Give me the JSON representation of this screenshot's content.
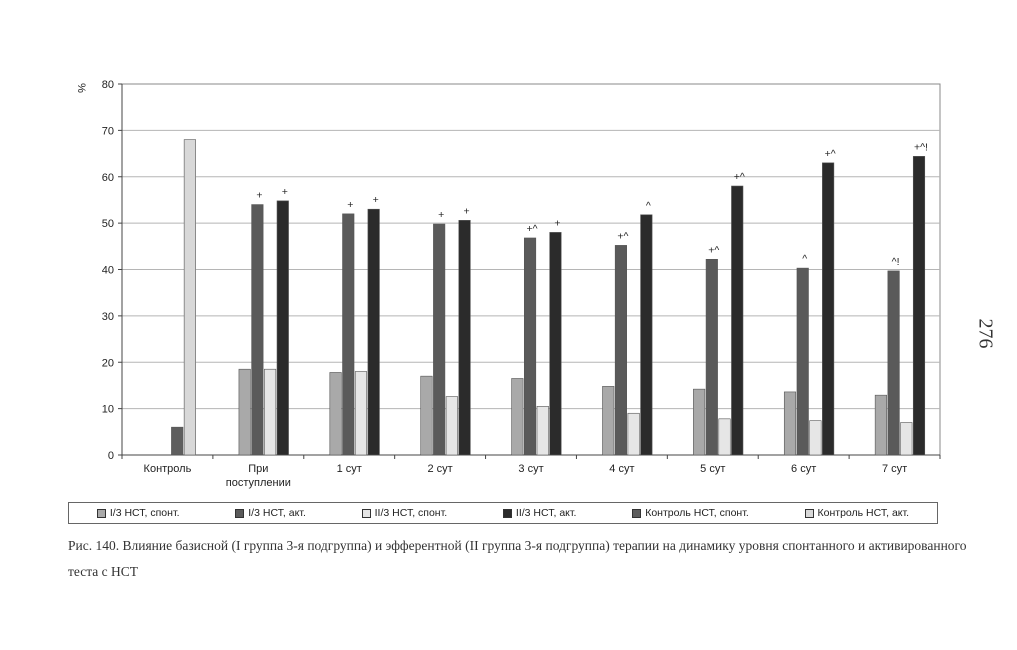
{
  "page_number": "276",
  "caption": "Рис. 140. Влияние базисной (I группа 3-я подгруппа) и эфферентной (II группа 3-я подгруппа) терапии на динамику уровня спонтанного и активированного теста с НСТ",
  "colors": {
    "s1": "#a9a9a9",
    "s2": "#5a5a5a",
    "s3": "#e6e6e6",
    "s4": "#2b2b2b",
    "s5": "#5e5e5e",
    "s6": "#d8d8d8"
  },
  "chart_data": {
    "type": "bar",
    "title": "",
    "xlabel": "",
    "ylabel": "%",
    "ylim": [
      0,
      80
    ],
    "yticks": [
      0,
      10,
      20,
      30,
      40,
      50,
      60,
      70,
      80
    ],
    "grid": true,
    "legend_position": "bottom",
    "categories": [
      "Контроль",
      "При поступлении",
      "1 сут",
      "2 сут",
      "3 сут",
      "4 сут",
      "5 сут",
      "6 сут",
      "7 сут"
    ],
    "series": [
      {
        "name": "I/3 НСТ, спонт.",
        "values": [
          null,
          18.5,
          17.8,
          17.0,
          16.5,
          14.8,
          14.2,
          13.6,
          12.9
        ]
      },
      {
        "name": "I/3 НСТ, акт.",
        "values": [
          null,
          54.0,
          52.0,
          49.8,
          46.8,
          45.2,
          42.2,
          40.3,
          39.7
        ]
      },
      {
        "name": "II/3 НСТ, спонт.",
        "values": [
          null,
          18.5,
          18.0,
          12.6,
          10.5,
          9.0,
          7.8,
          7.4,
          7.0
        ]
      },
      {
        "name": "II/3 НСТ, акт.",
        "values": [
          null,
          54.8,
          53.0,
          50.6,
          48.0,
          51.8,
          58.0,
          63.0,
          64.4
        ]
      },
      {
        "name": "Контроль НСТ, спонт.",
        "values": [
          6.0,
          null,
          null,
          null,
          null,
          null,
          null,
          null,
          null
        ]
      },
      {
        "name": "Контроль НСТ, акт.",
        "values": [
          68.0,
          null,
          null,
          null,
          null,
          null,
          null,
          null,
          null
        ]
      }
    ],
    "annotations": [
      {
        "category": "При поступлении",
        "series": "I/3 НСТ, акт.",
        "text": "+"
      },
      {
        "category": "При поступлении",
        "series": "II/3 НСТ, акт.",
        "text": "+"
      },
      {
        "category": "1 сут",
        "series": "I/3 НСТ, акт.",
        "text": "+"
      },
      {
        "category": "1 сут",
        "series": "II/3 НСТ, акт.",
        "text": "+"
      },
      {
        "category": "2 сут",
        "series": "I/3 НСТ, акт.",
        "text": "+"
      },
      {
        "category": "2 сут",
        "series": "II/3 НСТ, акт.",
        "text": "+"
      },
      {
        "category": "3 сут",
        "series": "I/3 НСТ, акт.",
        "text": "+^"
      },
      {
        "category": "3 сут",
        "series": "II/3 НСТ, акт.",
        "text": "+"
      },
      {
        "category": "4 сут",
        "series": "I/3 НСТ, акт.",
        "text": "+^"
      },
      {
        "category": "4 сут",
        "series": "II/3 НСТ, акт.",
        "text": "^"
      },
      {
        "category": "5 сут",
        "series": "I/3 НСТ, акт.",
        "text": "+^"
      },
      {
        "category": "5 сут",
        "series": "II/3 НСТ, акт.",
        "text": "+^"
      },
      {
        "category": "6 сут",
        "series": "I/3 НСТ, акт.",
        "text": "^"
      },
      {
        "category": "6 сут",
        "series": "II/3 НСТ, акт.",
        "text": "+^"
      },
      {
        "category": "7 сут",
        "series": "I/3 НСТ, акт.",
        "text": "^!"
      },
      {
        "category": "7 сут",
        "series": "II/3 НСТ, акт.",
        "text": "+^!"
      }
    ]
  }
}
